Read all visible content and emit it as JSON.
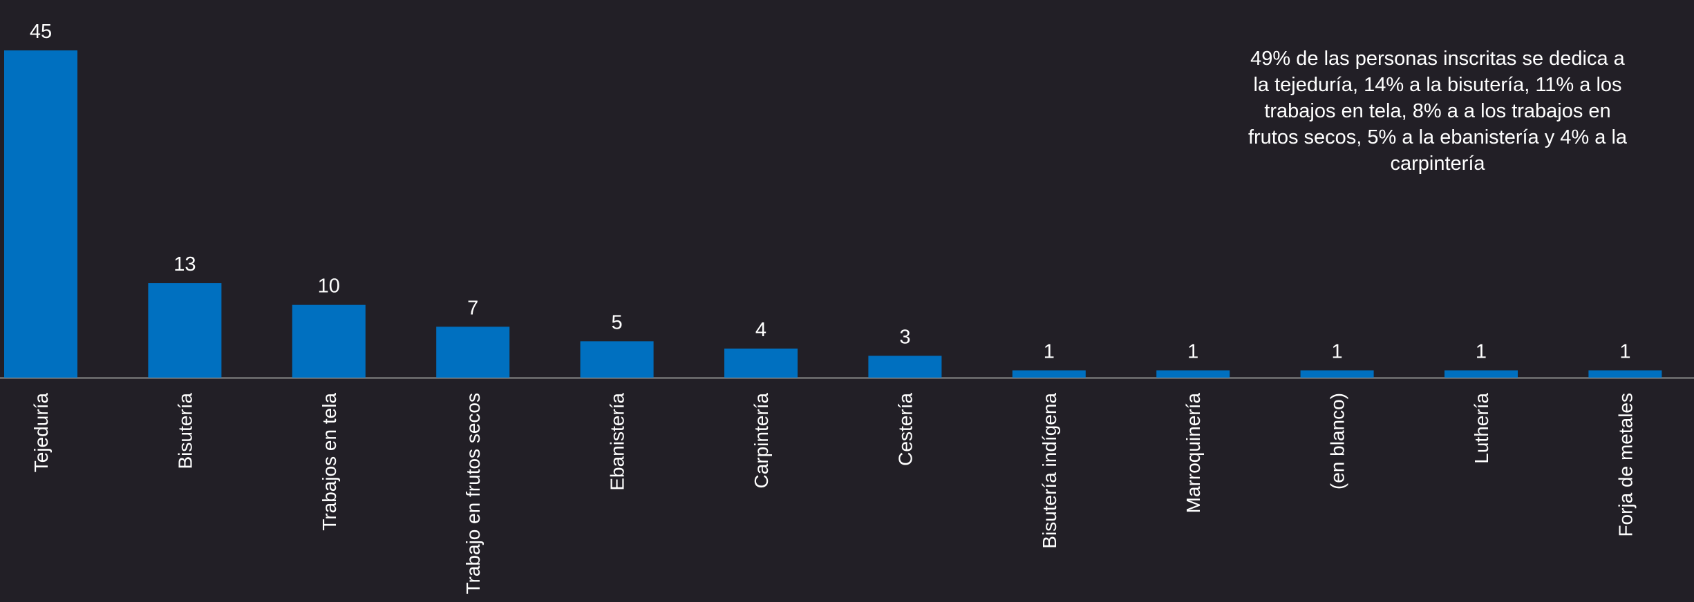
{
  "chart_data": {
    "type": "bar",
    "categories": [
      "Tejeduría",
      "Bisutería",
      "Trabajos en tela",
      "Trabajo en frutos secos",
      "Ebanistería",
      "Carpintería",
      "Cestería",
      "Bisutería indígena",
      "Marroquinería",
      "(en blanco)",
      "Luthería",
      "Forja de metales"
    ],
    "values": [
      45,
      13,
      10,
      7,
      5,
      4,
      3,
      1,
      1,
      1,
      1,
      1
    ],
    "title": "",
    "xlabel": "",
    "ylabel": "",
    "ylim": [
      0,
      45
    ],
    "grid": false,
    "legend": "none",
    "data_labels": true,
    "annotation": "49% de las personas inscritas se dedica a la tejeduría, 14% a la bisutería, 11% a los trabajos en tela, 8% a a los trabajos en frutos secos, 5% a la ebanistería y 4% a la carpintería"
  },
  "colors": {
    "background": "#221f26",
    "bar": "#0070c0",
    "text": "#ffffff",
    "axis": "#8c8c8c"
  }
}
